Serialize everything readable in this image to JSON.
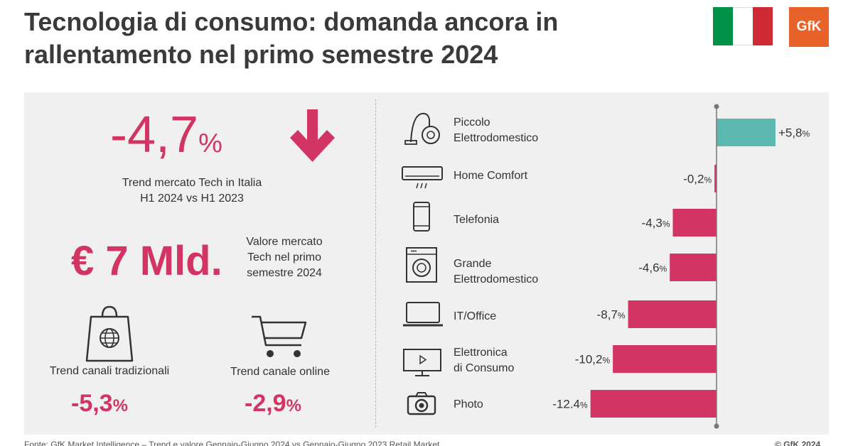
{
  "header": {
    "title": "Tecnologia di consumo: domanda ancora in rallentamento nel primo semestre 2024",
    "logo_text": "GfK",
    "flag_colors": [
      "#009246",
      "#ffffff",
      "#ce2b37"
    ]
  },
  "left": {
    "trend_value": "-4,7",
    "trend_unit": "%",
    "trend_label_1": "Trend mercato Tech in Italia",
    "trend_label_2": "H1 2024 vs H1 2023",
    "market_value": "€ 7 Mld.",
    "market_label_1": "Valore mercato",
    "market_label_2": "Tech nel primo",
    "market_label_3": "semestre 2024",
    "traditional_label": "Trend canali tradizionali",
    "traditional_value": "-5,3",
    "traditional_unit": "%",
    "online_label": "Trend canale online",
    "online_value": "-2,9",
    "online_unit": "%"
  },
  "colors": {
    "accent": "#d23464",
    "positive": "#5bb8b0",
    "panel": "#f0f0f0"
  },
  "chart_data": {
    "type": "bar",
    "orientation": "horizontal",
    "categories": [
      "Piccolo Elettrodomestico",
      "Home Comfort",
      "Telefonia",
      "Grande Elettrodomestico",
      "IT/Office",
      "Elettronica di Consumo",
      "Photo"
    ],
    "category_lines": [
      [
        "Piccolo",
        "Elettrodomestico"
      ],
      [
        "Home Comfort"
      ],
      [
        "Telefonia"
      ],
      [
        "Grande",
        "Elettrodomestico"
      ],
      [
        "IT/Office"
      ],
      [
        "Elettronica",
        "di Consumo"
      ],
      [
        "Photo"
      ]
    ],
    "values": [
      5.8,
      -0.2,
      -4.3,
      -4.6,
      -8.7,
      -10.2,
      -12.4
    ],
    "value_labels": [
      "+5,8",
      "-0,2",
      "-4,3",
      "-4,6",
      "-8,7",
      "-10,2",
      "-12.4"
    ],
    "unit": "%",
    "icons": [
      "vacuum-icon",
      "air-conditioner-icon",
      "smartphone-icon",
      "washing-machine-icon",
      "laptop-icon",
      "monitor-icon",
      "camera-icon"
    ]
  },
  "footer": {
    "source": "Fonte: GfK Market Intelligence – Trend e valore Gennaio-Giugno 2024 vs Gennaio-Giugno 2023 Retail Market",
    "copyright": "© GfK 2024"
  }
}
